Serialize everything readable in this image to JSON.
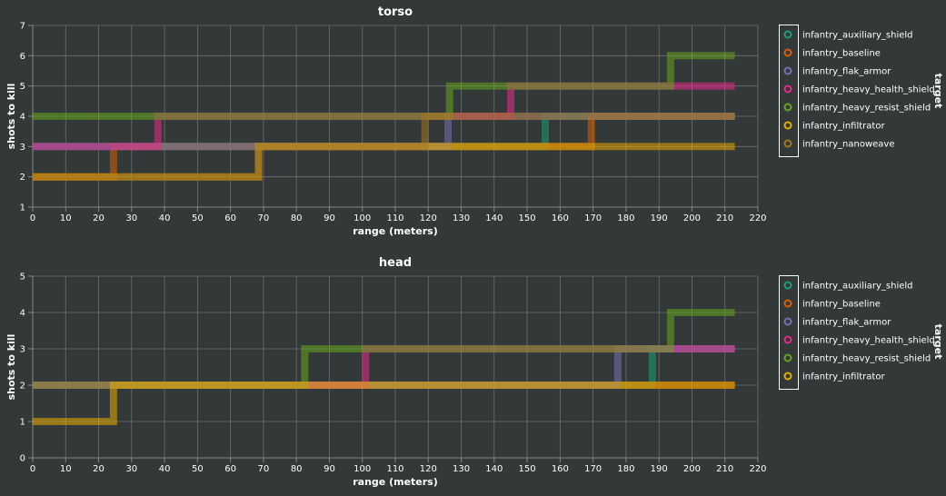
{
  "colors": {
    "background": "#333839",
    "grid": "#888888",
    "text": "#ffffff",
    "series": {
      "infantry_auxiliary_shield": "#1b9e77",
      "infantry_baseline": "#d95f02",
      "infantry_flak_armor": "#7570b3",
      "infantry_heavy_health_shield": "#e7298a",
      "infantry_heavy_resist_shield": "#66a61e",
      "infantry_infiltrator": "#e6ab02",
      "infantry_nanoweave": "#a6761d"
    }
  },
  "chart_data": [
    {
      "type": "line",
      "interpolation": "step",
      "title": "torso",
      "xlabel": "range (meters)",
      "ylabel": "shots to kill",
      "xlim": [
        0,
        220
      ],
      "ylim": [
        1,
        7
      ],
      "xticks": [
        0,
        10,
        20,
        30,
        40,
        50,
        60,
        70,
        80,
        90,
        100,
        110,
        120,
        130,
        140,
        150,
        160,
        170,
        180,
        190,
        200,
        210,
        220
      ],
      "yticks": [
        1,
        2,
        3,
        4,
        5,
        6,
        7
      ],
      "grid": true,
      "legend": {
        "title": "target",
        "position": "right",
        "entries": [
          "infantry_auxiliary_shield",
          "infantry_baseline",
          "infantry_flak_armor",
          "infantry_heavy_health_shield",
          "infantry_heavy_resist_shield",
          "infantry_infiltrator",
          "infantry_nanoweave"
        ]
      },
      "series": [
        {
          "name": "infantry_auxiliary_shield",
          "points": [
            [
              0,
              3
            ],
            [
              155.5,
              3
            ],
            [
              155.5,
              4
            ],
            [
              213,
              4
            ]
          ]
        },
        {
          "name": "infantry_baseline",
          "points": [
            [
              0,
              2
            ],
            [
              24.5,
              2
            ],
            [
              24.5,
              3
            ],
            [
              169.5,
              3
            ],
            [
              169.5,
              4
            ],
            [
              213,
              4
            ]
          ]
        },
        {
          "name": "infantry_flak_armor",
          "points": [
            [
              0,
              3
            ],
            [
              126,
              3
            ],
            [
              126,
              4
            ],
            [
              213,
              4
            ]
          ]
        },
        {
          "name": "infantry_heavy_health_shield",
          "points": [
            [
              0,
              3
            ],
            [
              38,
              3
            ],
            [
              38,
              4
            ],
            [
              145,
              4
            ],
            [
              145,
              5
            ],
            [
              213,
              5
            ]
          ]
        },
        {
          "name": "infantry_heavy_resist_shield",
          "points": [
            [
              0,
              4
            ],
            [
              126.5,
              4
            ],
            [
              126.5,
              5
            ],
            [
              193.5,
              5
            ],
            [
              193.5,
              6
            ],
            [
              213,
              6
            ]
          ]
        },
        {
          "name": "infantry_infiltrator",
          "points": [
            [
              0,
              2
            ],
            [
              68.5,
              2
            ],
            [
              68.5,
              3
            ],
            [
              213,
              3
            ]
          ]
        },
        {
          "name": "infantry_nanoweave",
          "points": [
            [
              0,
              2
            ],
            [
              68.5,
              2
            ],
            [
              68.5,
              3
            ],
            [
              119,
              3
            ],
            [
              119,
              4
            ],
            [
              213,
              4
            ]
          ]
        }
      ]
    },
    {
      "type": "line",
      "interpolation": "step",
      "title": "head",
      "xlabel": "range (meters)",
      "ylabel": "shots to kill",
      "xlim": [
        0,
        220
      ],
      "ylim": [
        0,
        5
      ],
      "xticks": [
        0,
        10,
        20,
        30,
        40,
        50,
        60,
        70,
        80,
        90,
        100,
        110,
        120,
        130,
        140,
        150,
        160,
        170,
        180,
        190,
        200,
        210,
        220
      ],
      "yticks": [
        0,
        1,
        2,
        3,
        4,
        5
      ],
      "grid": true,
      "legend": {
        "title": "target",
        "position": "right",
        "entries": [
          "infantry_auxiliary_shield",
          "infantry_baseline",
          "infantry_flak_armor",
          "infantry_heavy_health_shield",
          "infantry_heavy_resist_shield",
          "infantry_infiltrator"
        ]
      },
      "series": [
        {
          "name": "infantry_auxiliary_shield",
          "points": [
            [
              0,
              2
            ],
            [
              188,
              2
            ],
            [
              188,
              3
            ],
            [
              213,
              3
            ]
          ]
        },
        {
          "name": "infantry_baseline",
          "points": [
            [
              0,
              2
            ],
            [
              213,
              2
            ]
          ]
        },
        {
          "name": "infantry_flak_armor",
          "points": [
            [
              0,
              2
            ],
            [
              177.5,
              2
            ],
            [
              177.5,
              3
            ],
            [
              213,
              3
            ]
          ]
        },
        {
          "name": "infantry_heavy_health_shield",
          "points": [
            [
              0,
              2
            ],
            [
              101,
              2
            ],
            [
              101,
              3
            ],
            [
              213,
              3
            ]
          ]
        },
        {
          "name": "infantry_heavy_resist_shield",
          "points": [
            [
              0,
              2
            ],
            [
              82.5,
              2
            ],
            [
              82.5,
              3
            ],
            [
              193.5,
              3
            ],
            [
              193.5,
              4
            ],
            [
              213,
              4
            ]
          ]
        },
        {
          "name": "infantry_infiltrator",
          "points": [
            [
              0,
              1
            ],
            [
              24.5,
              1
            ],
            [
              24.5,
              2
            ],
            [
              213,
              2
            ]
          ]
        }
      ]
    }
  ]
}
